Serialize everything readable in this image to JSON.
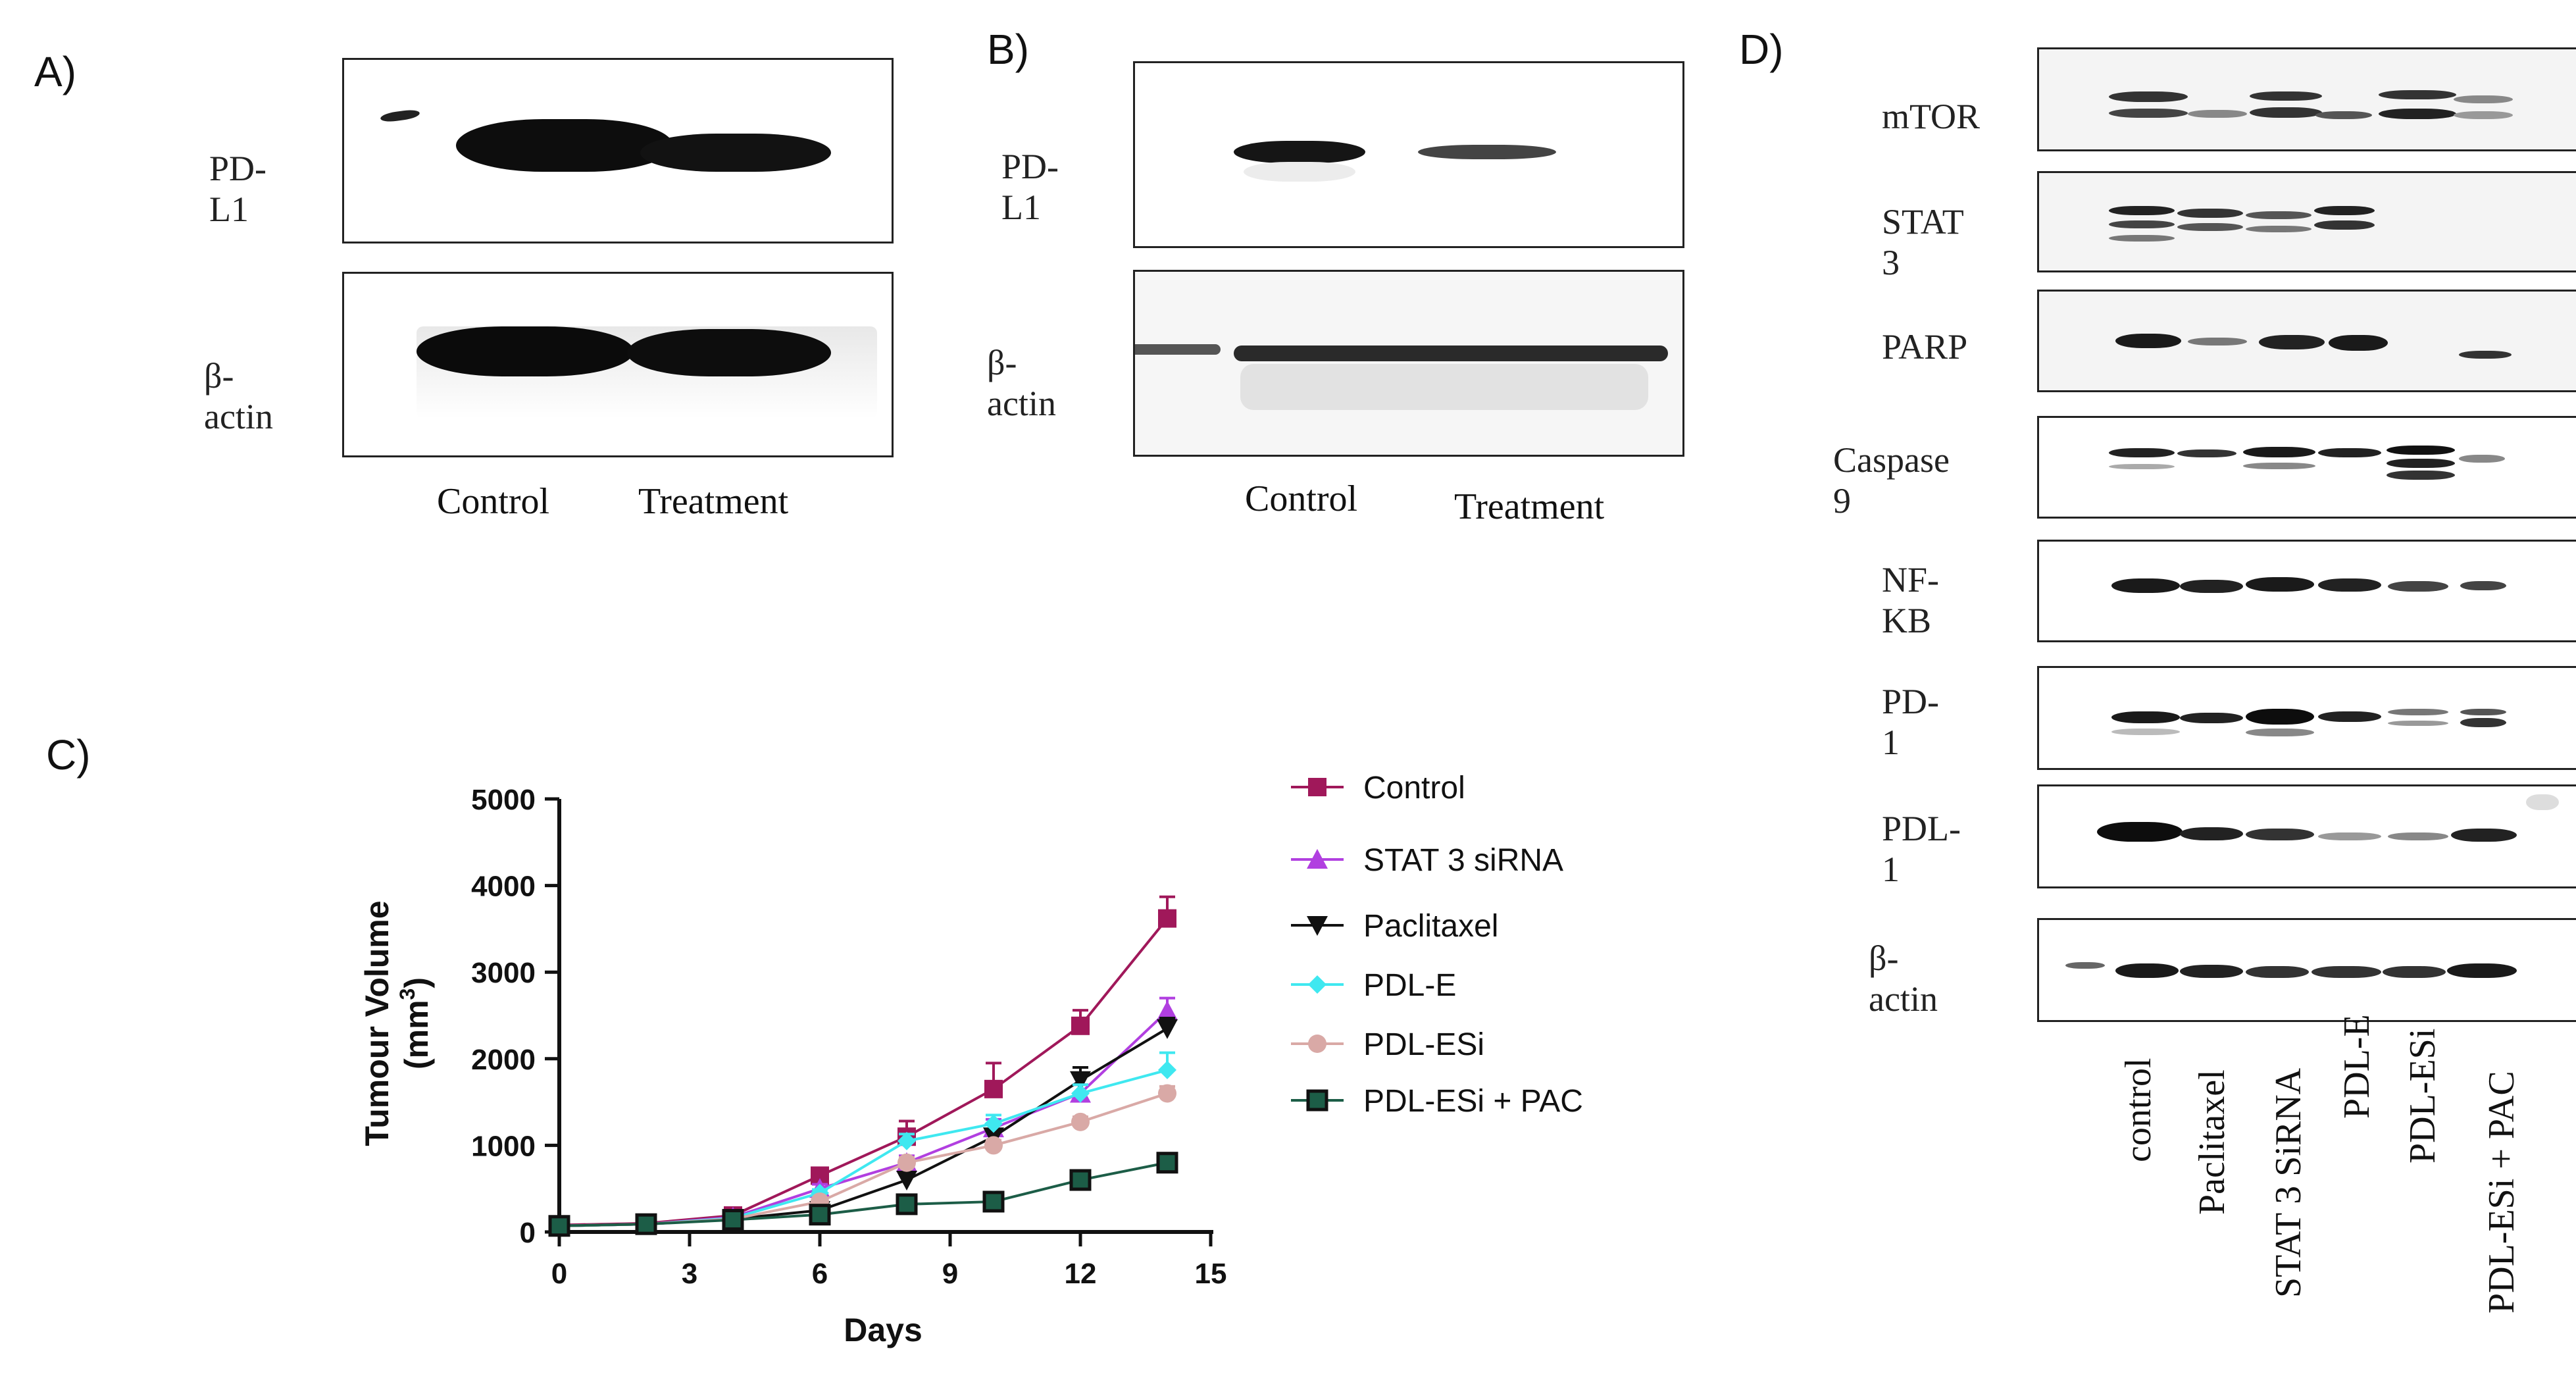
{
  "panels": {
    "A": {
      "letter": "A)",
      "rows": [
        "PD-L1",
        "β-actin"
      ],
      "lanes": [
        "Control",
        "Treatment"
      ]
    },
    "B": {
      "letter": "B)",
      "rows": [
        "PD-L1",
        "β-actin"
      ],
      "lanes": [
        "Control",
        "Treatment"
      ]
    },
    "C": {
      "letter": "C)"
    },
    "D": {
      "letter": "D)",
      "rows": [
        "mTOR",
        "STAT 3",
        "PARP",
        "Caspase 9",
        "NF-KB",
        "PD-1",
        "PDL-1",
        "β-actin"
      ],
      "lanes": [
        "control",
        "Paclitaxel",
        "STAT 3 SiRNA",
        "PDL-E",
        "PDL-ESi",
        "PDL-ESi + PAC"
      ]
    }
  },
  "chart_data": {
    "type": "line",
    "xlabel": "Days",
    "ylabel": "Tumour Volume",
    "ylabel_unit": "(mm",
    "ylabel_unit_sup": "3",
    "ylabel_unit_close": ")",
    "xlim": [
      0,
      15
    ],
    "ylim": [
      0,
      5000
    ],
    "xticks": [
      0,
      3,
      6,
      9,
      12,
      15
    ],
    "yticks": [
      0,
      1000,
      2000,
      3000,
      4000,
      5000
    ],
    "x": [
      0,
      2,
      4,
      6,
      8,
      10,
      12,
      14
    ],
    "legend_position": "right",
    "series": [
      {
        "name": "Control",
        "color": "#a0185a",
        "marker": "square",
        "values": [
          80,
          100,
          190,
          650,
          1100,
          1650,
          2380,
          3620
        ],
        "err": [
          20,
          20,
          30,
          60,
          180,
          300,
          180,
          250
        ]
      },
      {
        "name": "STAT 3 siRNA",
        "color": "#b13fe0",
        "marker": "triangle-up",
        "values": [
          70,
          90,
          170,
          500,
          800,
          1200,
          1600,
          2550
        ],
        "err": [
          20,
          20,
          30,
          50,
          80,
          100,
          100,
          150
        ]
      },
      {
        "name": "Paclitaxel",
        "color": "#111111",
        "marker": "triangle-down",
        "values": [
          70,
          90,
          150,
          250,
          600,
          1100,
          1750,
          2350
        ],
        "err": [
          20,
          20,
          30,
          30,
          60,
          80,
          150,
          120
        ]
      },
      {
        "name": "PDL-E",
        "color": "#3fe8f0",
        "marker": "diamond",
        "values": [
          70,
          90,
          160,
          450,
          1050,
          1250,
          1600,
          1870
        ],
        "err": [
          20,
          20,
          30,
          40,
          80,
          100,
          100,
          200
        ]
      },
      {
        "name": "PDL-ESi",
        "color": "#d9a9a6",
        "marker": "circle",
        "values": [
          70,
          90,
          150,
          350,
          800,
          1000,
          1270,
          1600
        ],
        "err": [
          20,
          20,
          30,
          40,
          60,
          60,
          60,
          80
        ]
      },
      {
        "name": "PDL-ESi + PAC",
        "color": "#1c5d47",
        "marker": "square-outline",
        "values": [
          70,
          90,
          140,
          200,
          320,
          350,
          600,
          800
        ],
        "err": [
          20,
          20,
          20,
          30,
          40,
          40,
          50,
          60
        ]
      }
    ]
  }
}
